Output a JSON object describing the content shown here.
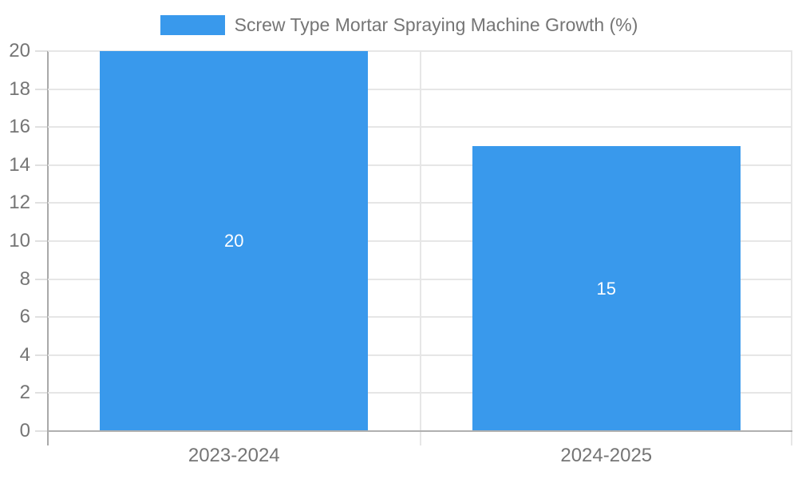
{
  "legend": {
    "position": "top",
    "swatch_color": "#3999EC"
  },
  "chart_data": {
    "type": "bar",
    "title": "",
    "categories": [
      "2023-2024",
      "2024-2025"
    ],
    "series": [
      {
        "name": "Screw Type Mortar Spraying Machine Growth (%)",
        "values": [
          20,
          15
        ],
        "color": "#3999EC"
      }
    ],
    "data_labels": {
      "show": true,
      "position": "inside-center",
      "color": "#FFFFFF",
      "values": [
        "20",
        "15"
      ]
    },
    "xlabel": "",
    "ylabel": "",
    "ylim": [
      0,
      20
    ],
    "ytick_step": 2,
    "yticks": [
      0,
      2,
      4,
      6,
      8,
      10,
      12,
      14,
      16,
      18,
      20
    ],
    "grid": true,
    "legend_position": "top"
  },
  "colors": {
    "bar": "#3999EC",
    "axis_label": "#757575",
    "gridline": "#E6E6E6",
    "tick_mark": "#E0E0E0",
    "y_axis_line": "#A9A9A9",
    "baseline": "#B0B0B0",
    "data_label": "#FFFFFF",
    "background": "#FFFFFF"
  }
}
